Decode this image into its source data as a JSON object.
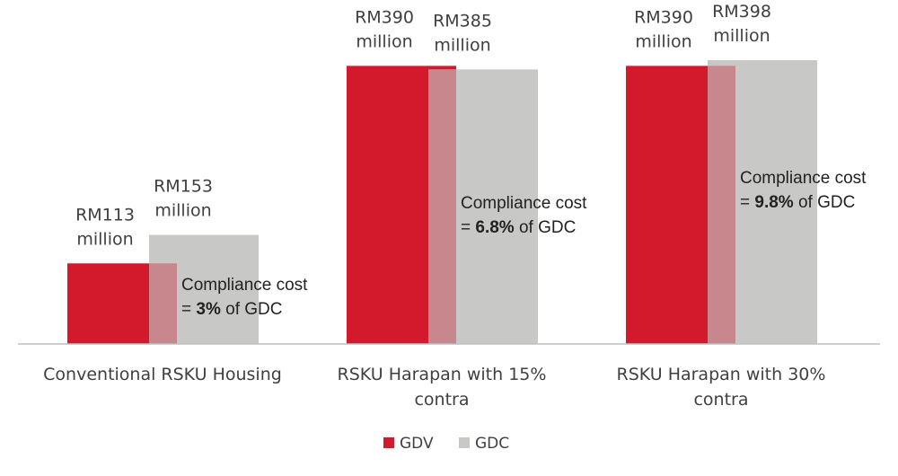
{
  "chart_data": {
    "type": "bar",
    "categories": [
      [
        "Conventional RSKU Housing"
      ],
      [
        "RSKU Harapan with 15%",
        "contra"
      ],
      [
        "RSKU Harapan with 30%",
        "contra"
      ]
    ],
    "series": [
      {
        "name": "GDV",
        "color": "#d21a2c",
        "values": [
          113,
          390,
          390
        ],
        "labels": [
          [
            "RM113",
            "million"
          ],
          [
            "RM390",
            "million"
          ],
          [
            "RM390",
            "million"
          ]
        ]
      },
      {
        "name": "GDC",
        "color": "#c8c8c6",
        "values": [
          153,
          385,
          398
        ],
        "labels": [
          [
            "RM153",
            "million"
          ],
          [
            "RM385",
            "million"
          ],
          [
            "RM398",
            "million"
          ]
        ]
      }
    ],
    "annotations": [
      {
        "line1": "Compliance cost",
        "prefix": "= ",
        "bold": "3%",
        "suffix": " of GDC"
      },
      {
        "line1": "Compliance cost",
        "prefix": "= ",
        "bold": "6.8%",
        "suffix": " of GDC"
      },
      {
        "line1": "Compliance cost",
        "prefix": "= ",
        "bold": "9.8%",
        "suffix": " of GDC"
      }
    ],
    "ylim": [
      0,
      398
    ],
    "grid": false,
    "legend_position": "bottom-center",
    "overlap_color": "#c8878c"
  }
}
